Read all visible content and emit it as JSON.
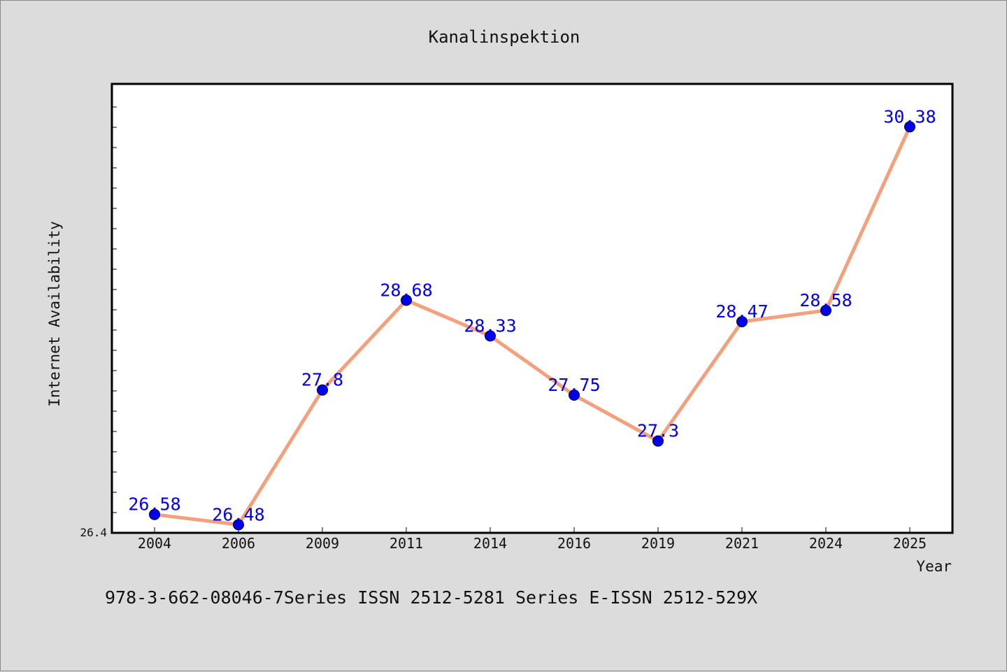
{
  "chart_data": {
    "type": "line",
    "title": "Kanalinspektion",
    "xlabel": "Year",
    "ylabel": "Internet Availability",
    "x": [
      "2004",
      "2006",
      "2009",
      "2011",
      "2014",
      "2016",
      "2019",
      "2021",
      "2024",
      "2025"
    ],
    "series": [
      {
        "values": [
          26.58,
          26.48,
          27.8,
          28.68,
          28.33,
          27.75,
          27.3,
          28.47,
          28.58,
          30.38
        ],
        "labels": [
          "26.58",
          "26.48",
          "27.8",
          "28.68",
          "28.33",
          "27.75",
          "27.3",
          "28.47",
          "28.58",
          "30.38"
        ]
      }
    ],
    "y_tick_labels": [
      "26.4"
    ],
    "ylim": [
      26.4,
      30.8
    ],
    "grid": false,
    "colors": {
      "line": "#f4a07c",
      "marker": "#0000ee",
      "data_label": "#0000ee",
      "plot_background": "#ffffff",
      "page_background": "#dcdcdc"
    }
  },
  "footer": {
    "text": "978-3-662-08046-7Series ISSN 2512-5281 Series E-ISSN 2512-529X"
  }
}
